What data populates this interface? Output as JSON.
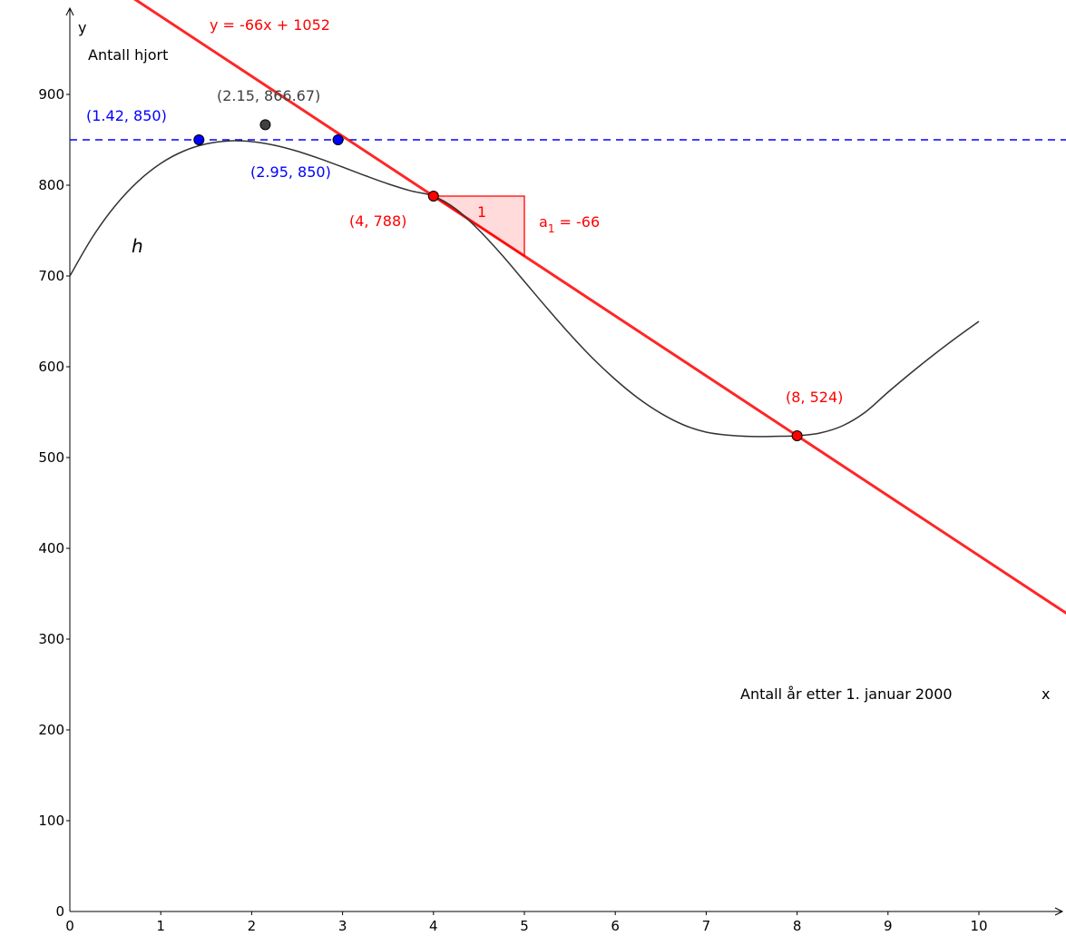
{
  "chart_data": {
    "type": "line",
    "xlabel": "Antall år etter 1. januar 2000",
    "ylabel": "Antall hjort",
    "x_axis_name": "x",
    "y_axis_name": "y",
    "xlim": [
      0,
      10.95
    ],
    "ylim": [
      0,
      1000
    ],
    "x_ticks": [
      "0",
      "1",
      "2",
      "3",
      "4",
      "5",
      "6",
      "7",
      "8",
      "9",
      "10"
    ],
    "y_ticks": [
      "0",
      "100",
      "200",
      "300",
      "400",
      "500",
      "600",
      "700",
      "800",
      "900"
    ],
    "grid": false,
    "curve": {
      "name": "h",
      "color": "#333333",
      "x": [
        0,
        0.25,
        0.5,
        0.75,
        1,
        1.25,
        1.5,
        1.75,
        2,
        2.25,
        2.5,
        2.75,
        3,
        3.25,
        3.5,
        3.75,
        4,
        4.25,
        4.5,
        4.75,
        5,
        5.25,
        5.5,
        5.75,
        6,
        6.25,
        6.5,
        6.75,
        7,
        7.25,
        7.5,
        7.75,
        8,
        8.25,
        8.5,
        8.75,
        9,
        9.25,
        9.5,
        9.75,
        10
      ],
      "y": [
        700,
        743.0,
        777.5,
        804.2,
        824.0,
        837.5,
        845.5,
        848.8,
        848.0,
        844.0,
        837.5,
        829.2,
        820.0,
        810.5,
        801.5,
        793.8,
        788.0,
        773.5,
        750.5,
        723.5,
        694.0,
        664.5,
        636.0,
        609.5,
        586.0,
        565.5,
        548.8,
        536.0,
        528.0,
        524.6,
        523.2,
        523.4,
        524.0,
        527.0,
        535.0,
        550.0,
        572.0,
        593.0,
        613.0,
        632.0,
        650.0
      ]
    },
    "tangent_line": {
      "label": "y = -66x + 1052",
      "slope": -66,
      "intercept": 1052,
      "color": "#ff0000"
    },
    "horizontal_line": {
      "y": 850,
      "color": "#0000ff",
      "style": "dashed"
    },
    "slope_triangle": {
      "x": 4,
      "y": 788,
      "run": 1,
      "rise": -66,
      "run_label": "1",
      "slope_label_main": "a",
      "slope_label_sub": "1",
      "slope_label_value": " = -66",
      "color": "#ff0000"
    },
    "points": [
      {
        "x": 1.42,
        "y": 850,
        "label": "(1.42, 850)",
        "color": "#0000ff"
      },
      {
        "x": 2.15,
        "y": 866.67,
        "label": "(2.15, 866.67)",
        "color": "#404040"
      },
      {
        "x": 2.95,
        "y": 850,
        "label": "(2.95, 850)",
        "color": "#0000ff"
      },
      {
        "x": 4,
        "y": 788,
        "label": "(4, 788)",
        "color": "#ff0000"
      },
      {
        "x": 8,
        "y": 524,
        "label": "(8, 524)",
        "color": "#ff0000"
      }
    ]
  }
}
